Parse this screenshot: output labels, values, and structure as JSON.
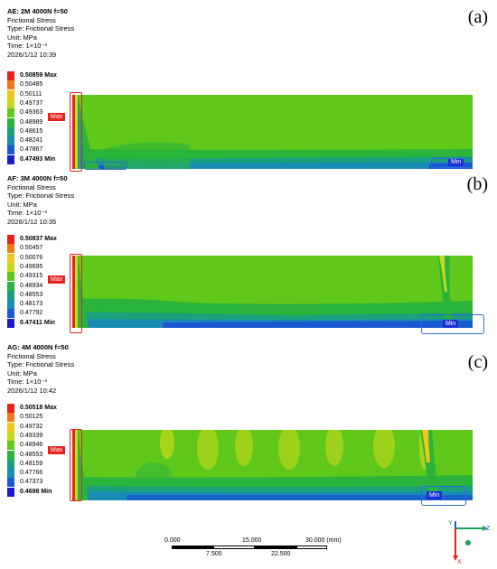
{
  "panels": [
    {
      "header_title": "AE: 2M  4000N  f=50",
      "line1": "Frictional Stress",
      "line2": "Type: Frictional Stress",
      "line3": "Unit: MPa",
      "line4": "Time: 1×10⁻³",
      "line5": "2026/1/12 10:39",
      "panel_label": "(a)",
      "legend": [
        "0.50859 Max",
        "0.50485",
        "0.50111",
        "0.49737",
        "0.49363",
        "0.48989",
        "0.48615",
        "0.48241",
        "0.47867",
        "0.47493 Min"
      ],
      "max_tag": "Max",
      "min_tag": "Min"
    },
    {
      "header_title": "AF: 3M  4000N  f=50",
      "line1": "Frictional Stress",
      "line2": "Type: Frictional Stress",
      "line3": "Unit: MPa",
      "line4": "Time: 1×10⁻³",
      "line5": "2026/1/12 10:35",
      "panel_label": "(b)",
      "legend": [
        "0.50837 Max",
        "0.50457",
        "0.50076",
        "0.49695",
        "0.49315",
        "0.48934",
        "0.48553",
        "0.48173",
        "0.47792",
        "0.47411 Min"
      ],
      "max_tag": "Max",
      "min_tag": "Min"
    },
    {
      "header_title": "AG: 4M  4000N  f=50",
      "line1": "Frictional Stress",
      "line2": "Type: Frictional Stress",
      "line3": "Unit: MPa",
      "line4": "Time: 1×10⁻³",
      "line5": "2026/1/12 10:42",
      "panel_label": "(c)",
      "legend": [
        "0.50518 Max",
        "0.50125",
        "0.49732",
        "0.49339",
        "0.48946",
        "0.48553",
        "0.48159",
        "0.47766",
        "0.47373",
        "0.4698 Min"
      ],
      "max_tag": "Max",
      "min_tag": "Min"
    }
  ],
  "legend_colors": [
    "#e8221c",
    "#f07a1a",
    "#f0c81a",
    "#c8d81a",
    "#5fc81a",
    "#2ab43a",
    "#1aa07a",
    "#1a8cb4",
    "#1a58d2",
    "#1a1ac8"
  ],
  "scale": {
    "top_labels": [
      "0.000",
      "15.000",
      "30.000 (mm)"
    ],
    "bottom_labels": [
      "7.500",
      "22.500"
    ]
  },
  "axes": {
    "z": "Z",
    "x": "X",
    "y": "Y"
  }
}
